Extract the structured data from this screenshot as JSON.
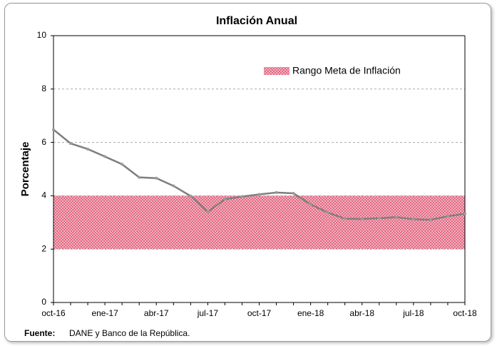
{
  "chart_data": {
    "type": "line",
    "title": "Inflación Anual",
    "y_label": "Porcentaje",
    "categories": [
      "oct-16",
      null,
      null,
      "ene-17",
      null,
      null,
      "abr-17",
      null,
      null,
      "jul-17",
      null,
      null,
      "oct-17",
      null,
      null,
      "ene-18",
      null,
      null,
      "abr-18",
      null,
      null,
      "jul-18",
      null,
      null,
      "oct-18"
    ],
    "series": [
      {
        "name": "Inflación",
        "color": "#7f7f7f",
        "values": [
          6.48,
          5.96,
          5.75,
          5.47,
          5.18,
          4.69,
          4.66,
          4.37,
          3.99,
          3.4,
          3.87,
          3.97,
          4.05,
          4.12,
          4.09,
          3.68,
          3.37,
          3.14,
          3.13,
          3.16,
          3.2,
          3.12,
          3.1,
          3.23,
          3.33
        ]
      }
    ],
    "target_range": {
      "name": "Rango Meta de Inflación",
      "low": 2,
      "high": 4,
      "color": "#e8677f"
    },
    "ylim": [
      0,
      10
    ],
    "yticks": [
      0,
      2,
      4,
      6,
      8,
      10
    ],
    "grid": true,
    "source_label": "Fuente:",
    "source": "DANE y Banco de la República."
  }
}
